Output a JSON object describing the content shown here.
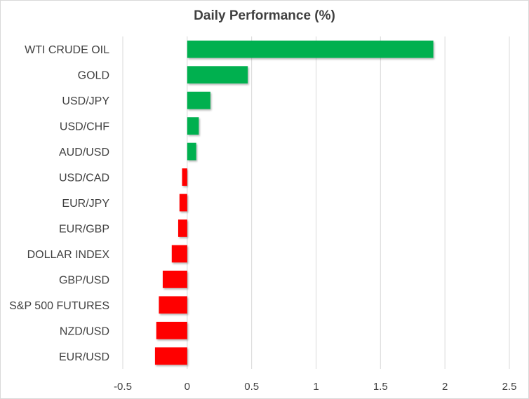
{
  "chart_data": {
    "type": "bar",
    "orientation": "horizontal",
    "title": "Daily Performance (%)",
    "xlabel": "",
    "ylabel": "",
    "categories": [
      "WTI CRUDE OIL",
      "GOLD",
      "USD/JPY",
      "USD/CHF",
      "AUD/USD",
      "USD/CAD",
      "EUR/JPY",
      "EUR/GBP",
      "DOLLAR INDEX",
      "GBP/USD",
      "S&P 500 FUTURES",
      "NZD/USD",
      "EUR/USD"
    ],
    "values": [
      1.91,
      0.47,
      0.18,
      0.09,
      0.07,
      -0.04,
      -0.06,
      -0.07,
      -0.12,
      -0.19,
      -0.22,
      -0.24,
      -0.25
    ],
    "xlim": [
      -0.5,
      2.5
    ],
    "xticks": [
      "-0.5",
      "0",
      "0.5",
      "1",
      "1.5",
      "2",
      "2.5"
    ],
    "grid": true,
    "legend": "none",
    "colors": {
      "positive": "#00b050",
      "negative": "#ff0000",
      "gridline": "#d9d9d9",
      "text": "#404040"
    }
  }
}
